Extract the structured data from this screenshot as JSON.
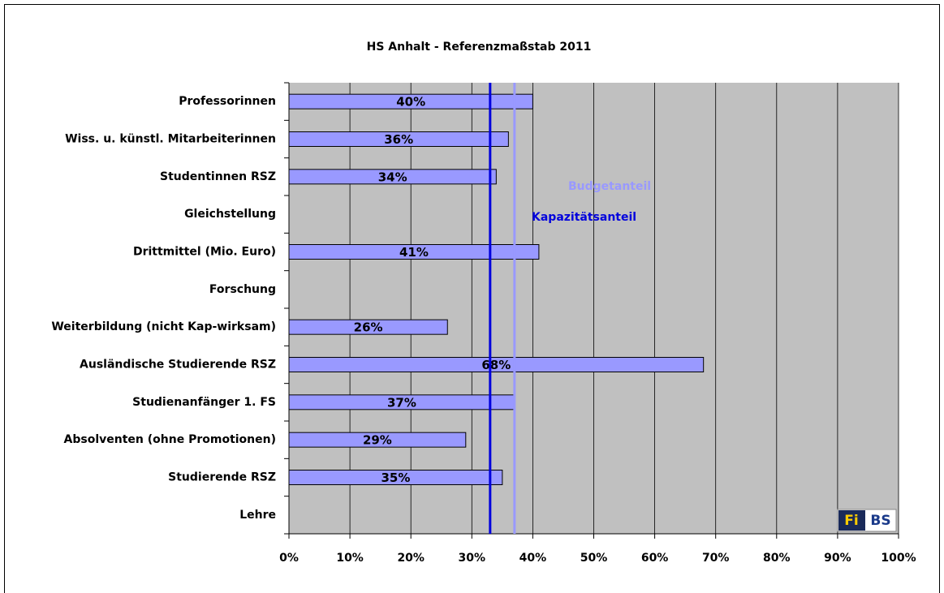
{
  "chart_data": {
    "type": "hbar",
    "title": "HS Anhalt - Referenzmaßstab 2011",
    "categories": [
      "Professorinnen",
      "Wiss. u. künstl. Mitarbeiterinnen",
      "Studentinnen RSZ",
      "Gleichstellung",
      "Drittmittel (Mio. Euro)",
      "Forschung",
      "Weiterbildung (nicht Kap-wirksam)",
      "Ausländische Studierende RSZ",
      "Studienanfänger 1. FS",
      "Absolventen (ohne Promotionen)",
      "Studierende RSZ",
      "Lehre"
    ],
    "values": [
      40,
      36,
      34,
      null,
      41,
      null,
      26,
      68,
      37,
      29,
      35,
      null
    ],
    "value_labels": [
      "40%",
      "36%",
      "34%",
      null,
      "41%",
      null,
      "26%",
      "68%",
      "37%",
      "29%",
      "35%",
      null
    ],
    "color": "#9999ff",
    "xlim": [
      0,
      100
    ],
    "xticks": [
      {
        "value": 0,
        "label": "0%"
      },
      {
        "value": 10,
        "label": "10%"
      },
      {
        "value": 20,
        "label": "20%"
      },
      {
        "value": 30,
        "label": "30%"
      },
      {
        "value": 40,
        "label": "40%"
      },
      {
        "value": 50,
        "label": "50%"
      },
      {
        "value": 60,
        "label": "60%"
      },
      {
        "value": 70,
        "label": "70%"
      },
      {
        "value": 80,
        "label": "80%"
      },
      {
        "value": 90,
        "label": "90%"
      },
      {
        "value": 100,
        "label": "100%"
      }
    ],
    "grid": true,
    "reference_lines": [
      {
        "name": "Kapazitätsanteil",
        "value": 33,
        "color": "#0000dd"
      },
      {
        "name": "Budgetanteil",
        "value": 37,
        "color": "#9999ff"
      }
    ],
    "logo": {
      "left": "Fi",
      "right": "BS"
    }
  }
}
